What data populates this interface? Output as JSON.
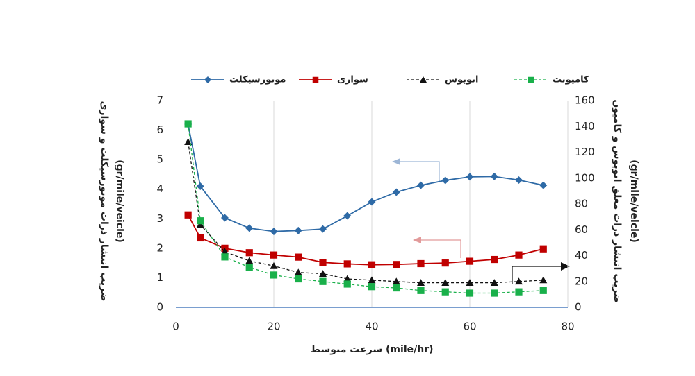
{
  "chart_data": {
    "type": "line",
    "xlabel": "سرعت متوسط (mile/hr)",
    "ylabel": [
      "ضریب انتشار ذرات موتورسیکلت و سواری",
      "(gr/mile/veicle)"
    ],
    "y2label": [
      "ضریب انتشار ذرات معلق اتوبوس و کامیون",
      "(gr/mile/veicle)"
    ],
    "x": [
      2.5,
      5,
      10,
      15,
      20,
      25,
      30,
      35,
      40,
      45,
      50,
      55,
      60,
      65,
      70,
      75
    ],
    "xlim": [
      0,
      80
    ],
    "xticks": [
      0,
      20,
      40,
      60,
      80
    ],
    "ylim": [
      0,
      7
    ],
    "yticks": [
      0,
      1,
      2,
      3,
      4,
      5,
      6,
      7
    ],
    "y2lim": [
      0,
      160
    ],
    "y2ticks": [
      0,
      20,
      40,
      60,
      80,
      100,
      120,
      140,
      160
    ],
    "grid": "x",
    "legend": "top",
    "series": [
      {
        "name": "موتورسیکلت",
        "color": "#2e6aa6",
        "marker": "diamond",
        "dash": false,
        "values": [
          6.2,
          4.1,
          3.03,
          2.68,
          2.57,
          2.6,
          2.65,
          3.1,
          3.57,
          3.9,
          4.13,
          4.3,
          4.42,
          4.43,
          4.31,
          4.13
        ]
      },
      {
        "name": "سواری",
        "color": "#c00000",
        "marker": "square",
        "dash": false,
        "values": [
          3.13,
          2.35,
          2.0,
          1.85,
          1.77,
          1.7,
          1.52,
          1.47,
          1.44,
          1.45,
          1.48,
          1.5,
          1.56,
          1.62,
          1.77,
          1.98
        ]
      },
      {
        "name": "اتوبوس",
        "color": "#111111",
        "marker": "triangle",
        "dash": true,
        "axis": "y2",
        "values": [
          128,
          64,
          43,
          36,
          32,
          27,
          26,
          22,
          21,
          20,
          19,
          19,
          19,
          19,
          20,
          21
        ]
      },
      {
        "name": "کامیونت",
        "color": "#19b04a",
        "marker": "square",
        "dash": true,
        "axis": "y2",
        "values": [
          142,
          67,
          39,
          31,
          25,
          22,
          20,
          18,
          16,
          15,
          13,
          12,
          11,
          11,
          12,
          13
        ]
      }
    ]
  }
}
